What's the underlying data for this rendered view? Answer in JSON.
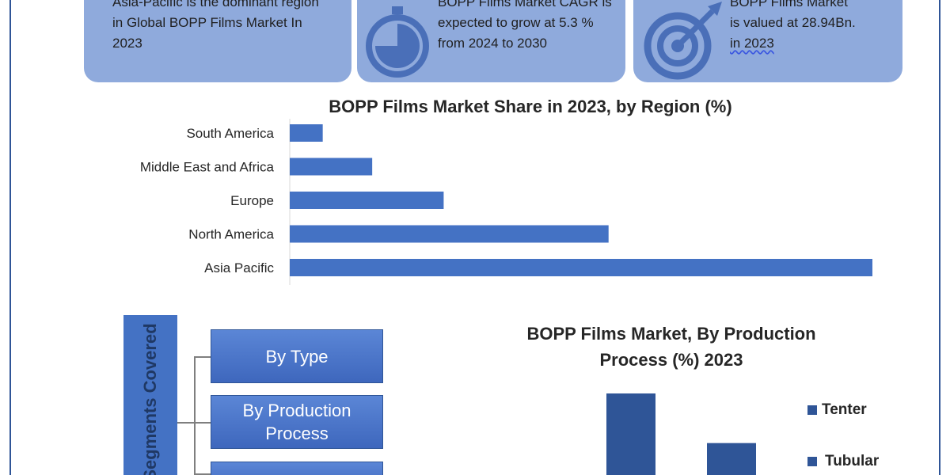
{
  "cards": [
    {
      "lines": [
        "Asia-Pacific is the dominant region",
        "in Global BOPP Films Market In",
        "2023"
      ],
      "icon": "pie-clock-icon"
    },
    {
      "lines": [
        "BOPP Films Market CAGR is",
        "expected to grow at 5.3 %",
        "from 2024 to 2030"
      ],
      "icon": "stopwatch-icon"
    },
    {
      "lines": [
        "BOPP Films Market",
        "is valued at 28.94Bn.",
        "in 2023"
      ],
      "icon": "target-icon"
    }
  ],
  "chart_data": [
    {
      "type": "bar",
      "orientation": "horizontal",
      "title": "BOPP Films Market Share in 2023, by Region (%)",
      "categories": [
        "South America",
        "Middle East and Africa",
        "Europe",
        "North America",
        "Asia Pacific"
      ],
      "values": [
        3,
        7.5,
        14,
        29,
        53
      ],
      "xlim": [
        0,
        53
      ],
      "color": "#4472c4",
      "grid": false
    },
    {
      "type": "bar",
      "title": "BOPP Films Market, By Production Process (%) 2023",
      "categories": [
        "Tenter",
        "Tubular"
      ],
      "values": [
        62,
        33
      ],
      "ylim": [
        0,
        66
      ],
      "color": "#2f5597",
      "legend": [
        "Tenter",
        "Tubular"
      ],
      "legend_position": "right"
    }
  ],
  "segments": {
    "header": "Segments Covered",
    "items": [
      "By Type",
      "By Production Process",
      ""
    ]
  }
}
